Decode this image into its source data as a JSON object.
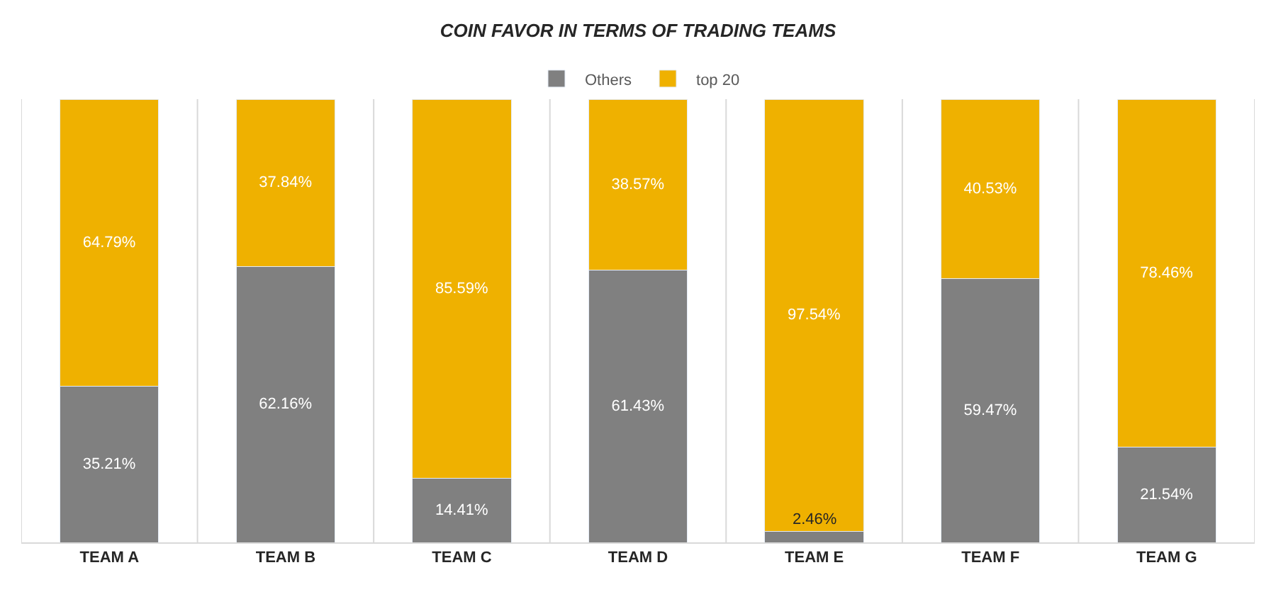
{
  "chart_data": {
    "type": "bar",
    "title": "COIN FAVOR IN TERMS OF TRADING TEAMS",
    "stacked": true,
    "categories": [
      "TEAM A",
      "TEAM B",
      "TEAM C",
      "TEAM D",
      "TEAM E",
      "TEAM F",
      "TEAM G"
    ],
    "series": [
      {
        "name": "Others",
        "color": "#808080",
        "values": [
          35.21,
          62.16,
          14.41,
          61.43,
          2.46,
          59.47,
          21.54
        ],
        "value_labels": [
          "35.21%",
          "62.16%",
          "14.41%",
          "61.43%",
          "2.46%",
          "59.47%",
          "21.54%"
        ]
      },
      {
        "name": "top 20",
        "color": "#efb100",
        "values": [
          64.79,
          37.84,
          85.59,
          38.57,
          97.54,
          40.53,
          78.46
        ],
        "value_labels": [
          "64.79%",
          "37.84%",
          "85.59%",
          "38.57%",
          "97.54%",
          "40.53%",
          "78.46%"
        ]
      }
    ],
    "grid": "x",
    "legend": "top",
    "tick_labels": "x"
  }
}
